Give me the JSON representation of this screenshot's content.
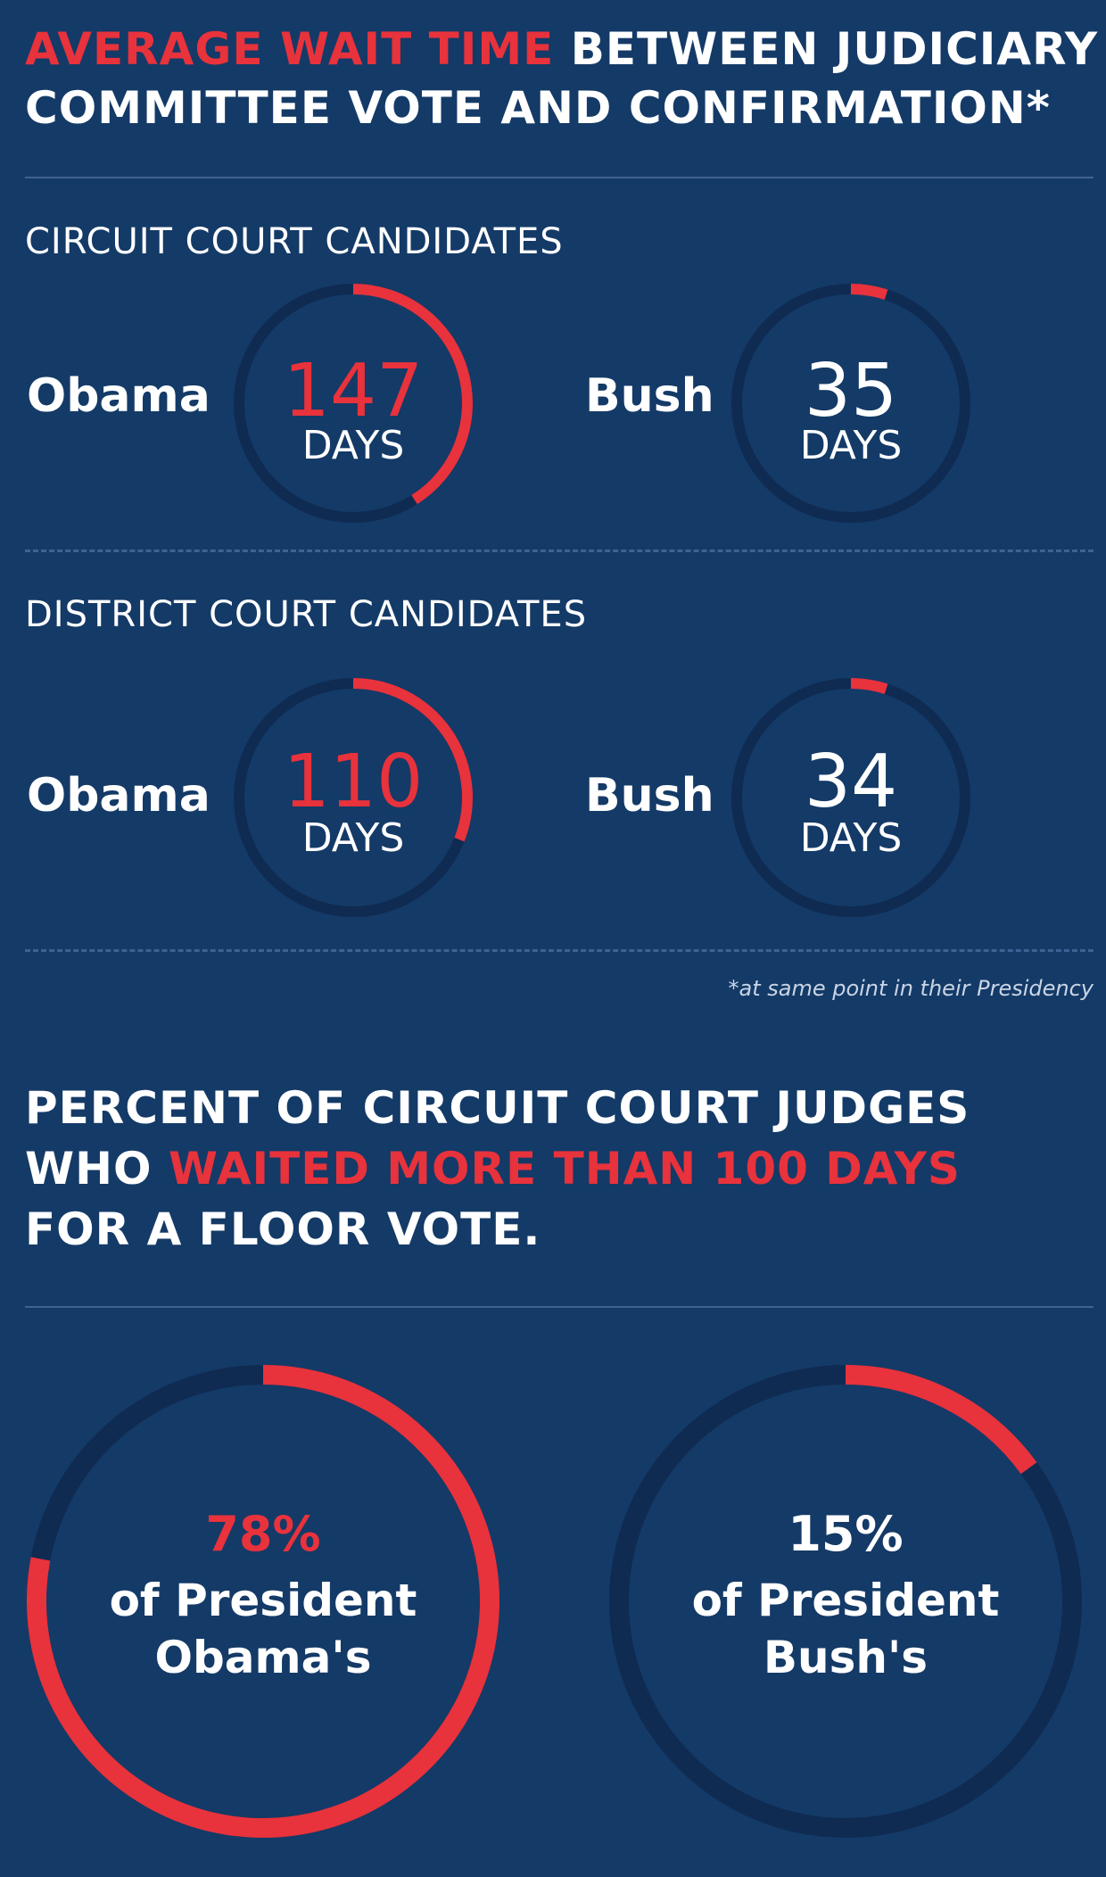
{
  "colors": {
    "background": "#143a67",
    "accent": "#e8323c",
    "track": "#0f2b52",
    "rule": "#3f6294"
  },
  "header1": {
    "red": "AVERAGE WAIT TIME",
    "white1": " BETWEEN JUDICIARY",
    "line2": "COMMITTEE VOTE AND CONFIRMATION*"
  },
  "circuit": {
    "label": "CIRCUIT COURT CANDIDATES",
    "obama": {
      "name": "Obama",
      "value": "147",
      "unit": "DAYS"
    },
    "bush": {
      "name": "Bush",
      "value": "35",
      "unit": "DAYS"
    }
  },
  "district": {
    "label": "DISTRICT COURT CANDIDATES",
    "obama": {
      "name": "Obama",
      "value": "110",
      "unit": "DAYS"
    },
    "bush": {
      "name": "Bush",
      "value": "34",
      "unit": "DAYS"
    }
  },
  "footnote": "*at same point in their Presidency",
  "header2": {
    "line1": "PERCENT OF CIRCUIT COURT JUDGES",
    "line2_white": "WHO ",
    "line2_red": "WAITED MORE THAN 100 DAYS",
    "line3": "FOR A FLOOR VOTE."
  },
  "percent": {
    "obama": {
      "value": "78%",
      "line1": "of President",
      "line2": "Obama's"
    },
    "bush": {
      "value": "15%",
      "line1": "of President",
      "line2": "Bush's"
    }
  },
  "chart_data": [
    {
      "type": "pie",
      "title": "CIRCUIT COURT CANDIDATES",
      "unit": "DAYS",
      "series": [
        {
          "name": "Obama",
          "value": 147,
          "fraction": 0.41
        },
        {
          "name": "Bush",
          "value": 35,
          "fraction": 0.05
        }
      ]
    },
    {
      "type": "pie",
      "title": "DISTRICT COURT CANDIDATES",
      "unit": "DAYS",
      "series": [
        {
          "name": "Obama",
          "value": 110,
          "fraction": 0.31
        },
        {
          "name": "Bush",
          "value": 34,
          "fraction": 0.05
        }
      ]
    },
    {
      "type": "pie",
      "title": "PERCENT OF CIRCUIT COURT JUDGES WHO WAITED MORE THAN 100 DAYS FOR A FLOOR VOTE.",
      "series": [
        {
          "name": "President Obama's",
          "value": 78,
          "fraction": 0.78
        },
        {
          "name": "President Bush's",
          "value": 15,
          "fraction": 0.15
        }
      ]
    }
  ]
}
